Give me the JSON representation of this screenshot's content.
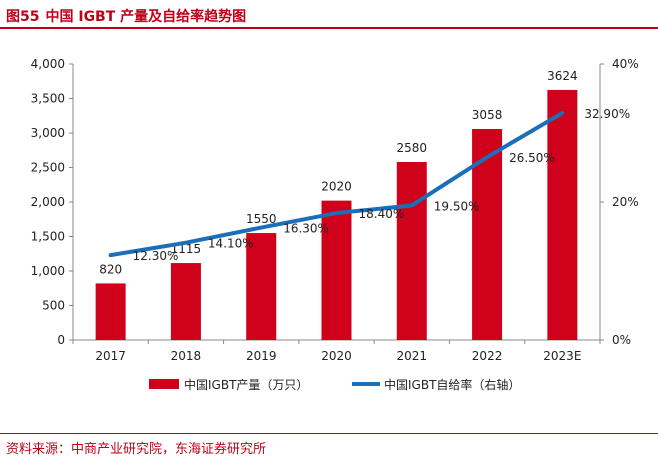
{
  "figure": {
    "label": "图55",
    "title": "中国 IGBT 产量及自给率趋势图",
    "source": "资料来源：中商产业研究院，东海证券研究所"
  },
  "colors": {
    "bar": "#d0021b",
    "line": "#1b6fb8",
    "accent": "#c0001a"
  },
  "chart_data": {
    "type": "bar",
    "categories": [
      "2017",
      "2018",
      "2019",
      "2020",
      "2021",
      "2022",
      "2023E"
    ],
    "series": [
      {
        "name": "中国IGBT产量（万只）",
        "type": "bar",
        "axis": "left",
        "values": [
          820,
          1115,
          1550,
          2020,
          2580,
          3058,
          3624
        ],
        "labels": [
          "820",
          "1115",
          "1550",
          "2020",
          "2580",
          "3058",
          "3624"
        ]
      },
      {
        "name": "中国IGBT自给率（右轴）",
        "type": "line",
        "axis": "right",
        "values": [
          12.3,
          14.1,
          16.3,
          18.4,
          19.5,
          26.5,
          32.9
        ],
        "labels": [
          "12.30%",
          "14.10%",
          "16.30%",
          "18.40%",
          "19.50%",
          "26.50%",
          "32.90%"
        ]
      }
    ],
    "y_left": {
      "min": 0,
      "max": 4000,
      "ticks": [
        0,
        500,
        1000,
        1500,
        2000,
        2500,
        3000,
        3500,
        4000
      ],
      "tick_labels": [
        "0",
        "500",
        "1,000",
        "1,500",
        "2,000",
        "2,500",
        "3,000",
        "3,500",
        "4,000"
      ]
    },
    "y_right": {
      "min": 0,
      "max": 40,
      "ticks": [
        0,
        20,
        40
      ],
      "tick_labels": [
        "0%",
        "20%",
        "40%"
      ]
    },
    "grid": false,
    "legend_position": "bottom"
  }
}
